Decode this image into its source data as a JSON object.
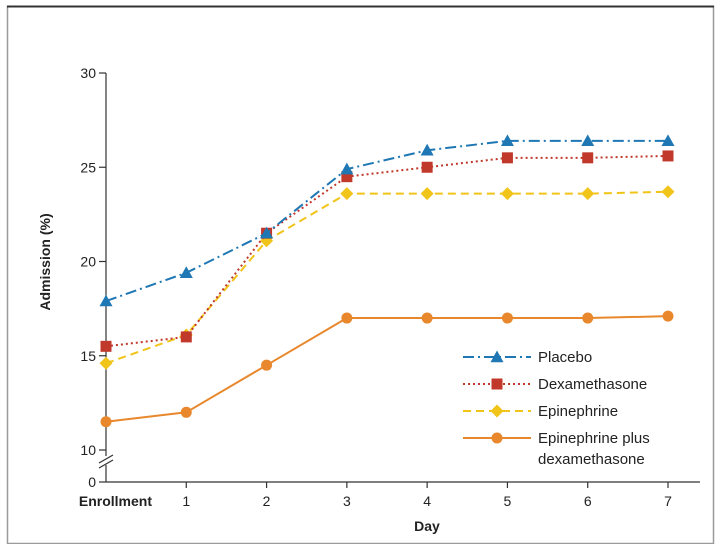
{
  "chart_data": {
    "type": "line",
    "title": "",
    "xlabel": "Day",
    "ylabel": "Admission (%)",
    "categories": [
      "Enrollment",
      "1",
      "2",
      "3",
      "4",
      "5",
      "6",
      "7"
    ],
    "y_ticks": [
      "0",
      "10",
      "15",
      "20",
      "25",
      "30"
    ],
    "ylim": [
      10,
      30
    ],
    "y_axis_break": true,
    "grid": false,
    "legend_position": "bottom-right",
    "series": [
      {
        "name": "Placebo",
        "values": [
          17.9,
          19.4,
          21.5,
          24.9,
          25.9,
          26.4,
          26.4,
          26.4
        ],
        "color": "#1f78b4",
        "marker": "triangle",
        "dash": "dash-dot"
      },
      {
        "name": "Dexamethasone",
        "values": [
          15.5,
          16.0,
          21.5,
          24.5,
          25.0,
          25.5,
          25.5,
          25.6
        ],
        "color": "#c0392b",
        "marker": "square",
        "dash": "dotted"
      },
      {
        "name": "Epinephrine",
        "values": [
          14.6,
          16.1,
          21.1,
          23.6,
          23.6,
          23.6,
          23.6,
          23.7
        ],
        "color": "#f0c419",
        "marker": "diamond",
        "dash": "dashed"
      },
      {
        "name": "Epinephrine plus dexamethasone",
        "legend_lines": [
          "Epinephrine plus",
          "dexamethasone"
        ],
        "values": [
          11.5,
          12.0,
          14.5,
          17.0,
          17.0,
          17.0,
          17.0,
          17.1
        ],
        "color": "#e8872b",
        "marker": "circle",
        "dash": "solid"
      }
    ]
  }
}
